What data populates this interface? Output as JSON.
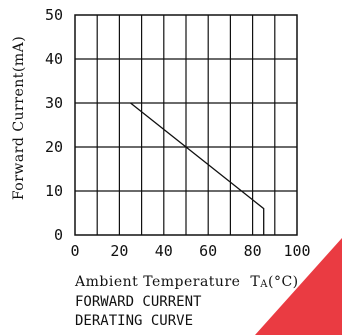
{
  "chart_data": {
    "type": "line",
    "xlabel": "Ambient Temperature",
    "xlabel_symbol": "T",
    "xlabel_subscript": "A",
    "xlabel_unit": "(°C)",
    "ylabel": "Forward Current(mA)",
    "xlim": [
      0,
      100
    ],
    "ylim": [
      0,
      50
    ],
    "x_ticks": [
      "0",
      "20",
      "40",
      "60",
      "80",
      "100"
    ],
    "y_ticks": [
      "0",
      "10",
      "20",
      "30",
      "40",
      "50"
    ],
    "grid": true,
    "grid_step_x": 10,
    "grid_step_y": 10,
    "series": [
      {
        "x": [
          25,
          85,
          85
        ],
        "y": [
          30,
          6,
          0
        ]
      }
    ],
    "caption_lines": [
      "FORWARD CURRENT",
      "DERATING CURVE"
    ],
    "colors": {
      "line": "#111111",
      "grid": "#111111",
      "watermark": "#e8262d"
    }
  }
}
